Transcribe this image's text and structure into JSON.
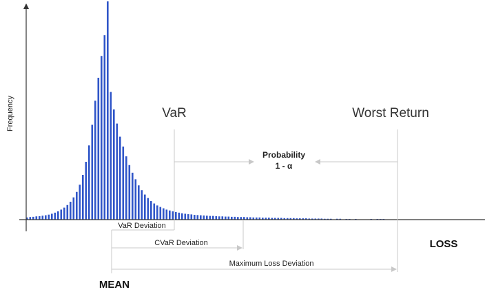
{
  "chart_data": {
    "type": "bar",
    "title": "",
    "ylabel": "Frequency",
    "xlabel": "LOSS",
    "color": "#2f55c8",
    "annotation_color": "#c8c8c8",
    "ylim": [
      0,
      100
    ],
    "values": [
      1.0,
      1.2,
      1.3,
      1.5,
      1.6,
      1.8,
      2.0,
      2.3,
      2.7,
      3.2,
      3.8,
      4.6,
      5.5,
      6.7,
      8.2,
      10.2,
      12.7,
      16.0,
      20.5,
      26.5,
      34.0,
      43.5,
      54.5,
      65.0,
      75.0,
      84.5,
      100.0,
      58.5,
      50.5,
      44.0,
      38.0,
      33.5,
      29.0,
      25.0,
      21.5,
      18.5,
      15.7,
      13.5,
      11.5,
      9.9,
      8.5,
      7.4,
      6.5,
      5.8,
      5.2,
      4.6,
      4.2,
      3.8,
      3.5,
      3.2,
      2.9,
      2.7,
      2.5,
      2.4,
      2.2,
      2.1,
      2.0,
      1.9,
      1.8,
      1.7,
      1.7,
      1.6,
      1.5,
      1.5,
      1.4,
      1.4,
      1.3,
      1.3,
      1.2,
      1.2,
      1.2,
      1.1,
      1.1,
      1.0,
      1.0,
      1.0,
      0.9,
      0.9,
      0.9,
      0.8,
      0.8,
      0.8,
      0.8,
      0.7,
      0.7,
      0.7,
      0.7,
      0.6,
      0.6,
      0.6,
      0.6,
      0.5,
      0.5,
      0.5,
      0.5,
      0.5,
      0.4,
      0.4,
      0.4,
      0,
      0.4,
      0.4,
      0,
      0.3,
      0.3,
      0,
      0.3,
      0,
      0,
      0,
      0,
      0.3,
      0,
      0.3,
      0.3,
      0.3
    ],
    "labels": {
      "var": "VaR",
      "worst_return": "Worst Return",
      "probability_line1": "Probability",
      "probability_line2": "1 - α",
      "var_deviation": "VaR Deviation",
      "cvar_deviation": "CVaR Deviation",
      "max_loss_deviation": "Maximum Loss Deviation",
      "mean": "MEAN",
      "loss": "LOSS",
      "frequency": "Frequency"
    }
  }
}
